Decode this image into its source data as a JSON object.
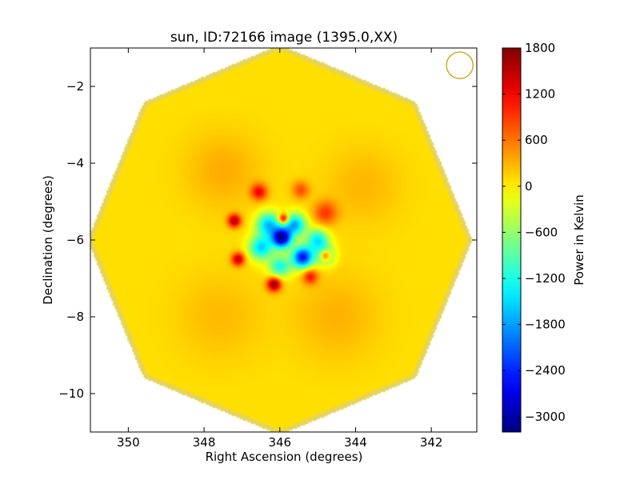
{
  "chart_data": {
    "type": "heatmap",
    "title": "sun, ID:72166 image (1395.0,XX)",
    "xlabel": "Right Ascension (degrees)",
    "ylabel": "Declination (degrees)",
    "xlim": [
      351.0,
      340.8
    ],
    "ylim": [
      -11.0,
      -1.0
    ],
    "x_inverted": true,
    "xticks": [
      350,
      348,
      346,
      344,
      342
    ],
    "xtick_labels": [
      "350",
      "348",
      "346",
      "344",
      "342"
    ],
    "yticks": [
      -2,
      -4,
      -6,
      -8,
      -10
    ],
    "ytick_labels": [
      "−2",
      "−4",
      "−6",
      "−8",
      "−10"
    ],
    "grid": false,
    "colormap": "jet",
    "colorbar": {
      "label": "Power in Kelvin",
      "vmin": -3200,
      "vmax": 1800,
      "ticks": [
        1800,
        1200,
        600,
        0,
        -600,
        -1200,
        -1800,
        -2400,
        -3000
      ],
      "tick_labels": [
        "1800",
        "1200",
        "600",
        "0",
        "−600",
        "−1200",
        "−1800",
        "−2400",
        "−3000"
      ]
    },
    "image_footprint": {
      "shape": "octagon",
      "center_ra": 346.0,
      "center_dec": -6.0,
      "radius_deg": 5.0,
      "background_value": 80
    },
    "beam_marker": {
      "shape": "circle",
      "center_ra": 341.25,
      "center_dec": -1.45,
      "radius_deg": 0.35,
      "color": "#c8a000"
    },
    "sources": [
      {
        "ra": 345.95,
        "dec": -5.95,
        "value": -3100,
        "sigma": 0.18
      },
      {
        "ra": 345.4,
        "dec": -6.45,
        "value": -2600,
        "sigma": 0.2
      },
      {
        "ra": 346.3,
        "dec": -5.6,
        "value": -1700,
        "sigma": 0.22
      },
      {
        "ra": 345.6,
        "dec": -5.6,
        "value": -1800,
        "sigma": 0.2
      },
      {
        "ra": 346.5,
        "dec": -6.2,
        "value": -1600,
        "sigma": 0.22
      },
      {
        "ra": 345.0,
        "dec": -6.0,
        "value": -1500,
        "sigma": 0.2
      },
      {
        "ra": 346.0,
        "dec": -6.7,
        "value": -1300,
        "sigma": 0.2
      },
      {
        "ra": 344.8,
        "dec": -6.4,
        "value": -1200,
        "sigma": 0.18
      },
      {
        "ra": 346.55,
        "dec": -4.75,
        "value": 1100,
        "sigma": 0.15
      },
      {
        "ra": 345.45,
        "dec": -4.7,
        "value": 700,
        "sigma": 0.16
      },
      {
        "ra": 347.2,
        "dec": -5.5,
        "value": 1500,
        "sigma": 0.12
      },
      {
        "ra": 347.1,
        "dec": -6.5,
        "value": 1400,
        "sigma": 0.12
      },
      {
        "ra": 346.15,
        "dec": -7.15,
        "value": 1700,
        "sigma": 0.13
      },
      {
        "ra": 345.2,
        "dec": -6.95,
        "value": 1000,
        "sigma": 0.14
      },
      {
        "ra": 344.8,
        "dec": -6.4,
        "value": 1700,
        "sigma": 0.1
      },
      {
        "ra": 344.8,
        "dec": -5.3,
        "value": 800,
        "sigma": 0.22
      },
      {
        "ra": 345.9,
        "dec": -5.45,
        "value": 1700,
        "sigma": 0.09
      },
      {
        "ra": 347.5,
        "dec": -4.2,
        "value": 250,
        "sigma": 0.7
      },
      {
        "ra": 344.5,
        "dec": -8.0,
        "value": 220,
        "sigma": 0.8
      },
      {
        "ra": 347.6,
        "dec": -8.0,
        "value": 180,
        "sigma": 0.8
      },
      {
        "ra": 343.8,
        "dec": -4.6,
        "value": 200,
        "sigma": 0.7
      }
    ]
  }
}
